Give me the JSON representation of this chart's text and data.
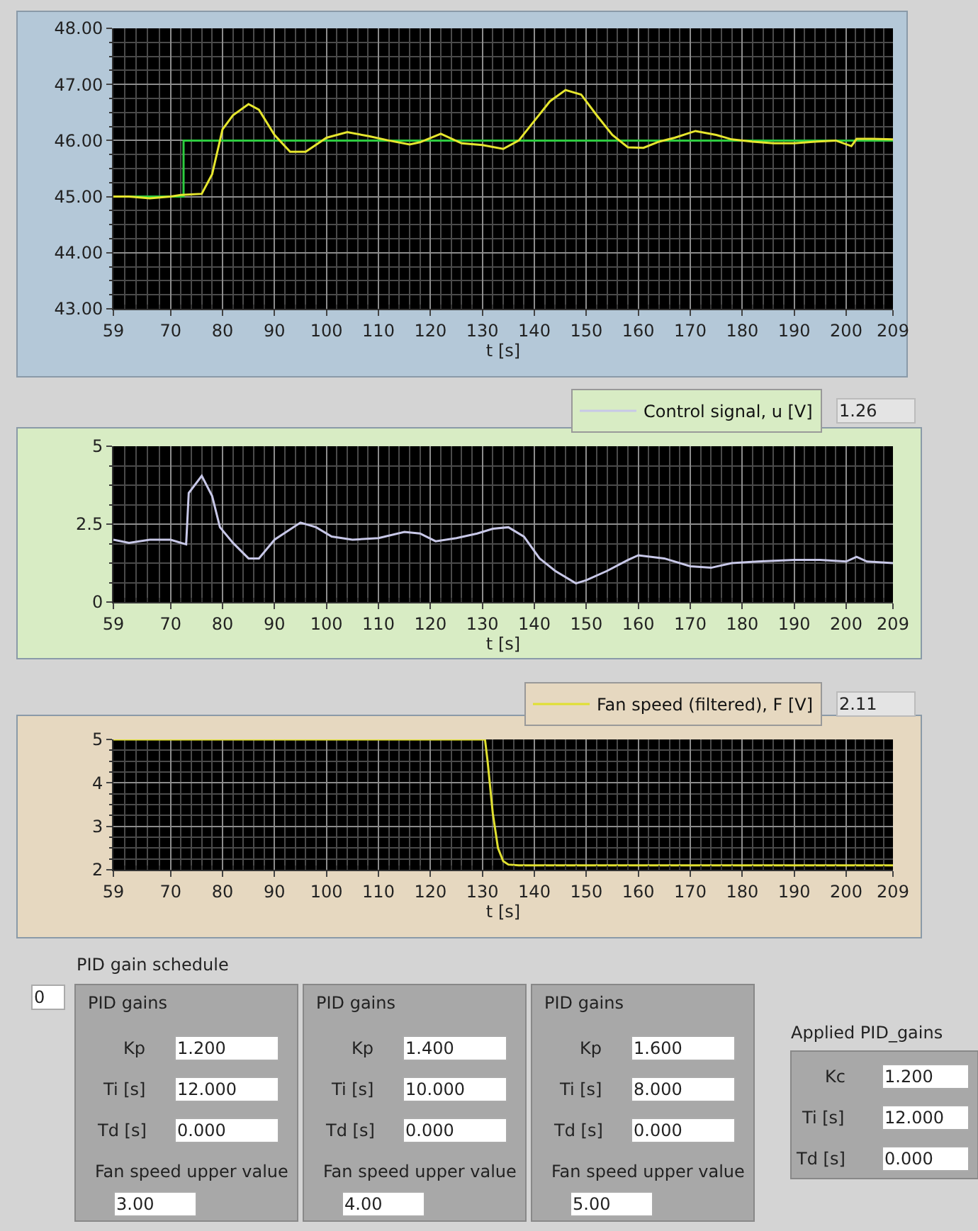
{
  "chart_data": [
    {
      "type": "line",
      "xlabel": "t [s]",
      "xlim": [
        59,
        209
      ],
      "xticks": [
        59,
        70,
        80,
        90,
        100,
        110,
        120,
        130,
        140,
        150,
        160,
        170,
        180,
        190,
        200,
        209
      ],
      "ylim": [
        43,
        48
      ],
      "yticks": [
        {
          "value": 43,
          "label": "43.00"
        },
        {
          "value": 44,
          "label": "44.00"
        },
        {
          "value": 45,
          "label": "45.00"
        },
        {
          "value": 46,
          "label": "46.00"
        },
        {
          "value": 47,
          "label": "47.00"
        },
        {
          "value": 48,
          "label": "48.00"
        }
      ],
      "grid": true,
      "legend": false,
      "series": [
        {
          "color": "#2ecc40",
          "x": [
            59,
            72.5,
            72.5,
            209
          ],
          "values": [
            45,
            45,
            46,
            46
          ]
        },
        {
          "color": "#e6e62e",
          "x": [
            59,
            62,
            66,
            70,
            72,
            76,
            78,
            80,
            82,
            85,
            87,
            90,
            93,
            96,
            100,
            104,
            108,
            112,
            116,
            118,
            122,
            126,
            130,
            134,
            137,
            140,
            143,
            146,
            149,
            152,
            155,
            158,
            161,
            164,
            167,
            171,
            175,
            178,
            182,
            186,
            190,
            194,
            198,
            201,
            202,
            205,
            209
          ],
          "values": [
            45.0,
            45.0,
            44.97,
            45.0,
            45.03,
            45.05,
            45.4,
            46.2,
            46.45,
            46.65,
            46.55,
            46.1,
            45.8,
            45.8,
            46.05,
            46.15,
            46.08,
            46.0,
            45.93,
            45.97,
            46.12,
            45.95,
            45.92,
            45.85,
            46.0,
            46.35,
            46.7,
            46.9,
            46.82,
            46.45,
            46.1,
            45.88,
            45.87,
            45.98,
            46.05,
            46.17,
            46.1,
            46.02,
            45.98,
            45.95,
            45.95,
            45.98,
            46.0,
            45.9,
            46.03,
            46.03,
            46.02
          ]
        }
      ]
    },
    {
      "type": "line",
      "xlabel": "t [s]",
      "xlim": [
        59,
        209
      ],
      "xticks": [
        59,
        70,
        80,
        90,
        100,
        110,
        120,
        130,
        140,
        150,
        160,
        170,
        180,
        190,
        200,
        209
      ],
      "ylim": [
        0,
        5
      ],
      "yticks": [
        0,
        2.5,
        5
      ],
      "grid": true,
      "legend": "top right",
      "annotations": [
        "1.26"
      ],
      "series": [
        {
          "name": "Control signal, u [V]",
          "color": "#c8c8e8",
          "x": [
            59,
            62,
            66,
            70,
            73,
            73.5,
            76,
            78,
            79.5,
            82,
            85,
            87,
            90,
            95,
            98,
            101,
            105,
            110,
            115,
            118,
            121,
            125,
            129,
            132,
            135,
            138,
            141,
            144,
            148,
            150,
            154,
            158,
            160,
            165,
            170,
            174,
            178,
            183,
            190,
            195,
            200,
            202,
            204,
            209
          ],
          "values": [
            2.0,
            1.9,
            2.0,
            2.0,
            1.85,
            3.5,
            4.05,
            3.4,
            2.4,
            1.9,
            1.4,
            1.4,
            2.0,
            2.55,
            2.4,
            2.1,
            2.0,
            2.05,
            2.25,
            2.2,
            1.95,
            2.05,
            2.2,
            2.35,
            2.4,
            2.1,
            1.4,
            1.0,
            0.6,
            0.7,
            1.0,
            1.35,
            1.5,
            1.4,
            1.15,
            1.1,
            1.25,
            1.3,
            1.35,
            1.35,
            1.3,
            1.45,
            1.3,
            1.25
          ]
        }
      ]
    },
    {
      "type": "line",
      "xlabel": "t [s]",
      "xlim": [
        59,
        209
      ],
      "xticks": [
        59,
        70,
        80,
        90,
        100,
        110,
        120,
        130,
        140,
        150,
        160,
        170,
        180,
        190,
        200,
        209
      ],
      "ylim": [
        2,
        5
      ],
      "yticks": [
        2,
        3,
        4,
        5
      ],
      "grid": true,
      "legend": "top right",
      "annotations": [
        "2.11"
      ],
      "series": [
        {
          "name": "Fan speed (filtered), F [V]",
          "color": "#e0e030",
          "x": [
            59,
            130.5,
            131,
            132,
            133,
            134,
            135,
            137,
            209
          ],
          "values": [
            5,
            5,
            4.5,
            3.3,
            2.5,
            2.2,
            2.12,
            2.1,
            2.1
          ]
        }
      ]
    },
    {
      "type": "other",
      "title": "PID gain schedule",
      "annotations": [
        "0",
        "PID gains",
        "Kp",
        "1.200",
        "Ti [s]",
        "12.000",
        "Td [s]",
        "0.000",
        "Fan speed upper value",
        "3.00",
        "PID gains",
        "Kp",
        "1.400",
        "Ti [s]",
        "10.000",
        "Td [s]",
        "0.000",
        "Fan speed upper value",
        "4.00",
        "PID gains",
        "Kp",
        "1.600",
        "Ti [s]",
        "8.000",
        "Td [s]",
        "0.000",
        "Fan speed upper value",
        "5.00",
        "Applied PID_gains",
        "Kc",
        "1.200",
        "Ti [s]",
        "12.000",
        "Td [s]",
        "0.000"
      ]
    }
  ]
}
